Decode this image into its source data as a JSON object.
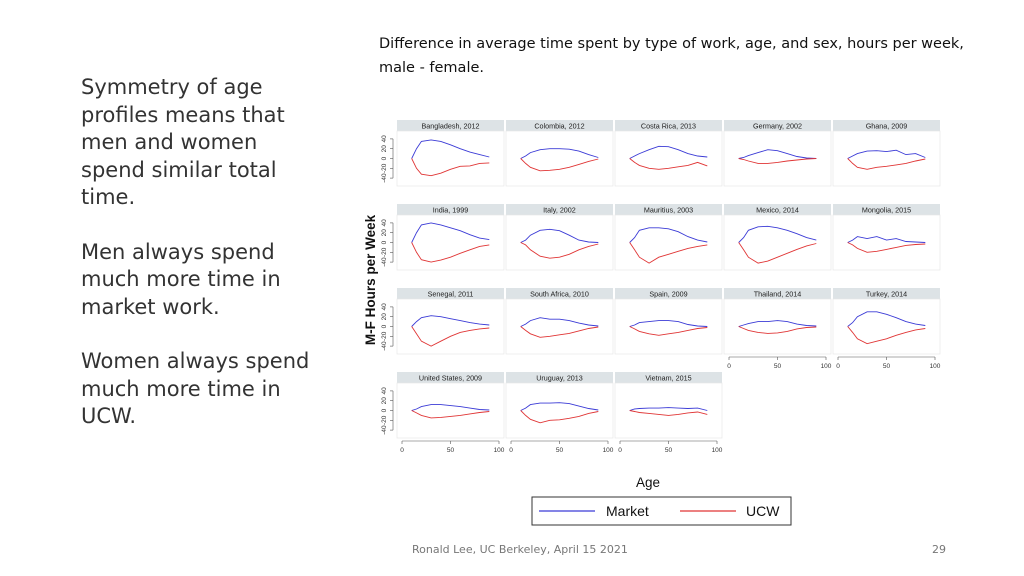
{
  "slide": {
    "bullets": [
      "Symmetry of age profiles means that men and women spend similar total time.",
      "Men always spend much more time in market work.",
      "Women always spend much more time in UCW."
    ],
    "footer": "Ronald Lee, UC Berkeley, April 15 2021",
    "page_number": "29"
  },
  "chart_data": {
    "type": "line",
    "title": "Difference in average time spent by type of work, age, and sex, hours per week, male - female.",
    "xlabel": "Age",
    "ylabel": "M-F Hours per Week",
    "xlim": [
      0,
      100
    ],
    "ylim": [
      -50,
      50
    ],
    "x_ticks": [
      0,
      50,
      100
    ],
    "y_ticks": [
      40,
      20,
      0,
      -20,
      -40
    ],
    "legend": {
      "position": "bottom",
      "entries": [
        "Market",
        "UCW"
      ]
    },
    "colors": {
      "Market": "#3b3bd6",
      "UCW": "#e03535"
    },
    "grid": false,
    "panels": [
      {
        "label": "Bangladesh, 2012",
        "x": [
          10,
          15,
          20,
          30,
          40,
          50,
          60,
          70,
          80,
          90
        ],
        "series": [
          {
            "name": "Market",
            "values": [
              0,
              20,
              35,
              38,
              35,
              28,
              20,
              13,
              8,
              3
            ]
          },
          {
            "name": "UCW",
            "values": [
              0,
              -20,
              -32,
              -35,
              -30,
              -22,
              -16,
              -15,
              -10,
              -9
            ]
          }
        ]
      },
      {
        "label": "Colombia, 2012",
        "x": [
          10,
          15,
          20,
          30,
          40,
          50,
          60,
          70,
          80,
          90
        ],
        "series": [
          {
            "name": "Market",
            "values": [
              0,
              5,
              12,
              18,
              20,
              20,
              19,
              15,
              8,
              2
            ]
          },
          {
            "name": "UCW",
            "values": [
              0,
              -10,
              -18,
              -25,
              -24,
              -22,
              -18,
              -12,
              -6,
              -1
            ]
          }
        ]
      },
      {
        "label": "Costa Rica, 2013",
        "x": [
          10,
          15,
          20,
          30,
          40,
          50,
          60,
          70,
          80,
          90
        ],
        "series": [
          {
            "name": "Market",
            "values": [
              0,
              5,
              10,
              18,
              25,
              24,
              18,
              10,
              5,
              3
            ]
          },
          {
            "name": "UCW",
            "values": [
              0,
              -8,
              -14,
              -20,
              -22,
              -20,
              -17,
              -14,
              -8,
              -15
            ]
          }
        ]
      },
      {
        "label": "Germany, 2002",
        "x": [
          10,
          15,
          20,
          30,
          40,
          50,
          60,
          70,
          80,
          90
        ],
        "series": [
          {
            "name": "Market",
            "values": [
              0,
              2,
              6,
              12,
              18,
              16,
              10,
              4,
              1,
              0
            ]
          },
          {
            "name": "UCW",
            "values": [
              0,
              -2,
              -5,
              -10,
              -10,
              -8,
              -5,
              -3,
              -1,
              0
            ]
          }
        ]
      },
      {
        "label": "Ghana, 2009",
        "x": [
          10,
          15,
          20,
          30,
          40,
          50,
          60,
          70,
          80,
          90
        ],
        "series": [
          {
            "name": "Market",
            "values": [
              0,
              5,
              10,
              15,
              16,
              14,
              17,
              8,
              10,
              2
            ]
          },
          {
            "name": "UCW",
            "values": [
              0,
              -10,
              -18,
              -22,
              -18,
              -16,
              -13,
              -10,
              -5,
              -1
            ]
          }
        ]
      },
      {
        "label": "India, 1999",
        "x": [
          10,
          15,
          20,
          30,
          40,
          50,
          60,
          70,
          80,
          90
        ],
        "series": [
          {
            "name": "Market",
            "values": [
              0,
              20,
              36,
              40,
              36,
              30,
              24,
              16,
              9,
              6
            ]
          },
          {
            "name": "UCW",
            "values": [
              0,
              -20,
              -35,
              -40,
              -36,
              -30,
              -22,
              -15,
              -8,
              -5
            ]
          }
        ]
      },
      {
        "label": "Italy, 2002",
        "x": [
          10,
          15,
          20,
          30,
          40,
          50,
          60,
          70,
          80,
          90
        ],
        "series": [
          {
            "name": "Market",
            "values": [
              0,
              5,
              15,
              25,
              27,
              24,
              15,
              5,
              1,
              0
            ]
          },
          {
            "name": "UCW",
            "values": [
              0,
              -5,
              -15,
              -28,
              -32,
              -30,
              -24,
              -15,
              -8,
              -3
            ]
          }
        ]
      },
      {
        "label": "Mauritius, 2003",
        "x": [
          10,
          15,
          20,
          30,
          40,
          50,
          60,
          70,
          80,
          90
        ],
        "series": [
          {
            "name": "Market",
            "values": [
              0,
              10,
              25,
              30,
              30,
              28,
              22,
              12,
              5,
              1
            ]
          },
          {
            "name": "UCW",
            "values": [
              0,
              -15,
              -30,
              -42,
              -30,
              -24,
              -18,
              -12,
              -8,
              -5
            ]
          }
        ]
      },
      {
        "label": "Mexico, 2014",
        "x": [
          10,
          15,
          20,
          30,
          40,
          50,
          60,
          70,
          80,
          90
        ],
        "series": [
          {
            "name": "Market",
            "values": [
              0,
              10,
              25,
              32,
              33,
              30,
              25,
              18,
              10,
              5
            ]
          },
          {
            "name": "UCW",
            "values": [
              0,
              -15,
              -30,
              -42,
              -38,
              -30,
              -22,
              -14,
              -7,
              -2
            ]
          }
        ]
      },
      {
        "label": "Mongolia, 2015",
        "x": [
          10,
          15,
          20,
          30,
          40,
          50,
          60,
          70,
          80,
          90
        ],
        "series": [
          {
            "name": "Market",
            "values": [
              0,
              5,
              12,
              8,
              12,
              5,
              8,
              2,
              1,
              0
            ]
          },
          {
            "name": "UCW",
            "values": [
              0,
              -5,
              -12,
              -20,
              -18,
              -14,
              -10,
              -6,
              -4,
              -3
            ]
          }
        ]
      },
      {
        "label": "Senegal, 2011",
        "x": [
          10,
          15,
          20,
          30,
          40,
          50,
          60,
          70,
          80,
          90
        ],
        "series": [
          {
            "name": "Market",
            "values": [
              0,
              10,
              18,
              22,
              20,
              16,
              12,
              8,
              5,
              3
            ]
          },
          {
            "name": "UCW",
            "values": [
              0,
              -15,
              -30,
              -40,
              -30,
              -20,
              -12,
              -8,
              -5,
              -3
            ]
          }
        ]
      },
      {
        "label": "South Africa, 2010",
        "x": [
          10,
          15,
          20,
          30,
          40,
          50,
          60,
          70,
          80,
          90
        ],
        "series": [
          {
            "name": "Market",
            "values": [
              0,
              5,
              12,
              18,
              15,
              15,
              12,
              7,
              3,
              1
            ]
          },
          {
            "name": "UCW",
            "values": [
              0,
              -8,
              -15,
              -22,
              -20,
              -17,
              -14,
              -9,
              -4,
              -1
            ]
          }
        ]
      },
      {
        "label": "Spain, 2009",
        "x": [
          10,
          15,
          20,
          30,
          40,
          50,
          60,
          70,
          80,
          90
        ],
        "series": [
          {
            "name": "Market",
            "values": [
              0,
              3,
              8,
              10,
              12,
              12,
              10,
              4,
              1,
              0
            ]
          },
          {
            "name": "UCW",
            "values": [
              0,
              -5,
              -10,
              -15,
              -18,
              -15,
              -12,
              -8,
              -4,
              -2
            ]
          }
        ]
      },
      {
        "label": "Thailand, 2014",
        "x": [
          10,
          15,
          20,
          30,
          40,
          50,
          60,
          70,
          80,
          90
        ],
        "series": [
          {
            "name": "Market",
            "values": [
              0,
              3,
              6,
              10,
              10,
              12,
              10,
              5,
              2,
              1
            ]
          },
          {
            "name": "UCW",
            "values": [
              0,
              -4,
              -8,
              -12,
              -14,
              -13,
              -10,
              -5,
              -2,
              -1
            ]
          }
        ]
      },
      {
        "label": "Turkey, 2014",
        "x": [
          10,
          15,
          20,
          30,
          40,
          50,
          60,
          70,
          80,
          90
        ],
        "series": [
          {
            "name": "Market",
            "values": [
              0,
              8,
              20,
              30,
              30,
              25,
              18,
              10,
              5,
              2
            ]
          },
          {
            "name": "UCW",
            "values": [
              0,
              -12,
              -25,
              -35,
              -30,
              -25,
              -18,
              -12,
              -7,
              -4
            ]
          }
        ]
      },
      {
        "label": "United States, 2009",
        "x": [
          10,
          15,
          20,
          30,
          40,
          50,
          60,
          70,
          80,
          90
        ],
        "series": [
          {
            "name": "Market",
            "values": [
              0,
              3,
              8,
              12,
              12,
              10,
              8,
              5,
              2,
              1
            ]
          },
          {
            "name": "UCW",
            "values": [
              0,
              -5,
              -10,
              -15,
              -14,
              -12,
              -10,
              -7,
              -4,
              -2
            ]
          }
        ]
      },
      {
        "label": "Uruguay, 2013",
        "x": [
          10,
          15,
          20,
          30,
          40,
          50,
          60,
          70,
          80,
          90
        ],
        "series": [
          {
            "name": "Market",
            "values": [
              0,
              5,
              12,
              15,
              15,
              16,
              14,
              9,
              4,
              1
            ]
          },
          {
            "name": "UCW",
            "values": [
              0,
              -10,
              -18,
              -25,
              -20,
              -19,
              -16,
              -12,
              -6,
              -2
            ]
          }
        ]
      },
      {
        "label": "Vietnam, 2015",
        "x": [
          10,
          15,
          20,
          30,
          40,
          50,
          60,
          70,
          80,
          90
        ],
        "series": [
          {
            "name": "Market",
            "values": [
              0,
              3,
              4,
              5,
              5,
              6,
              5,
              4,
              5,
              0
            ]
          },
          {
            "name": "UCW",
            "values": [
              0,
              -2,
              -4,
              -6,
              -8,
              -10,
              -8,
              -5,
              -3,
              -8
            ]
          }
        ]
      }
    ]
  }
}
